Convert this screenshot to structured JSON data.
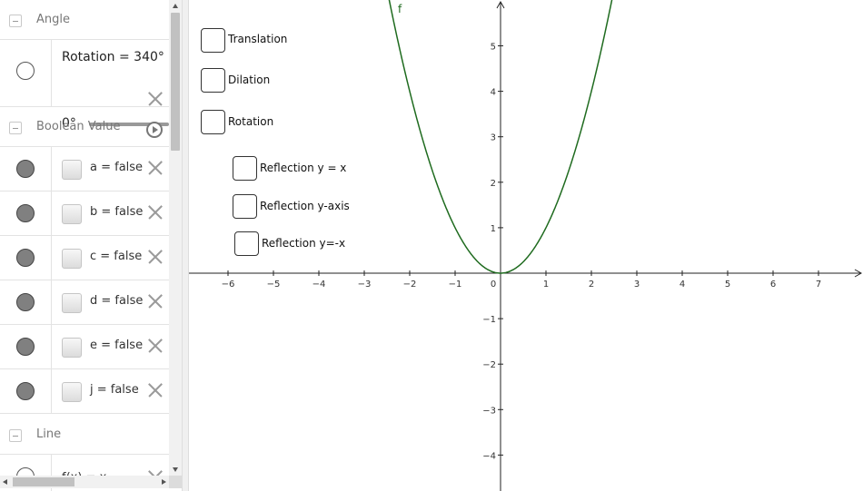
{
  "algebra": {
    "groups": [
      {
        "title": "Angle"
      },
      {
        "title": "Boolean Value"
      },
      {
        "title": "Line"
      }
    ],
    "rotation": {
      "label": "Rotation = 340°",
      "min": "0°",
      "slider_fraction": 0.944
    },
    "booleans": [
      {
        "expr": "a = false"
      },
      {
        "expr": "b = false"
      },
      {
        "expr": "c = false"
      },
      {
        "expr": "d = false"
      },
      {
        "expr": "e = false"
      },
      {
        "expr": "j = false"
      }
    ],
    "partial_line": {
      "expr": "f(x) = x"
    }
  },
  "graphics": {
    "function_label": "f",
    "curve_color": "#1f6b1f",
    "checkboxes": [
      {
        "label": "Translation"
      },
      {
        "label": "Dilation"
      },
      {
        "label": "Rotation"
      },
      {
        "label": "Reflection y = x"
      },
      {
        "label": "Reflection y-axis"
      },
      {
        "label": "Reflection y=-x"
      }
    ],
    "x_ticks": [
      "−6",
      "−5",
      "−4",
      "−3",
      "−2",
      "−1",
      "0",
      "1",
      "2",
      "3",
      "4",
      "5",
      "6",
      "7"
    ],
    "y_ticks": [
      "5",
      "4",
      "3",
      "2",
      "1",
      "−1",
      "−2",
      "−3",
      "−4"
    ]
  },
  "chart_data": {
    "type": "line",
    "series": [
      {
        "name": "f",
        "function": "x^2"
      }
    ],
    "xlim": [
      -6.8,
      8
    ],
    "ylim": [
      -4.7,
      6
    ]
  }
}
